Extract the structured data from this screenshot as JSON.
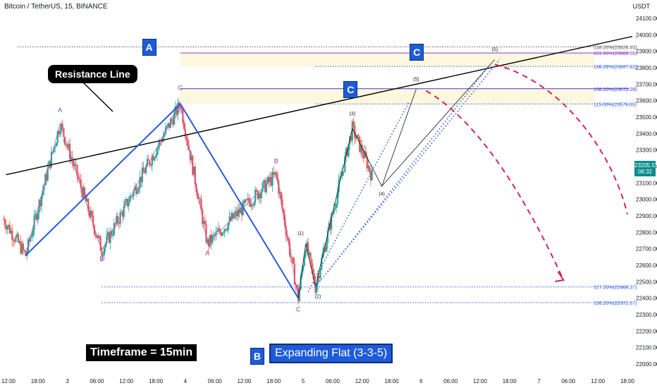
{
  "title": "Bitcoin / TetherUS, 15, BINANCE",
  "y_unit": "USDT",
  "callout": "Resistance Line",
  "banner_timeframe": "Timeframe = 15min",
  "banner_pattern": "Expanding Flat (3-3-5)",
  "current_price": "23205.51",
  "countdown": "08:32",
  "wave_boxes": [
    {
      "label": "A",
      "price": 23930,
      "time": 57
    },
    {
      "label": "B",
      "price": 22050,
      "time": 101
    },
    {
      "label": "C",
      "price": 23670,
      "time": 139
    },
    {
      "label": "C",
      "price": 23900,
      "time": 166
    }
  ],
  "chart_data": {
    "type": "line",
    "x_ticks": [
      {
        "t": 0,
        "label": "12:00"
      },
      {
        "t": 12,
        "label": "18:00"
      },
      {
        "t": 24,
        "label": "3"
      },
      {
        "t": 36,
        "label": "06:00"
      },
      {
        "t": 48,
        "label": "12:00"
      },
      {
        "t": 60,
        "label": "18:00"
      },
      {
        "t": 72,
        "label": "4"
      },
      {
        "t": 84,
        "label": "06:00"
      },
      {
        "t": 96,
        "label": "12:00"
      },
      {
        "t": 108,
        "label": "18:00"
      },
      {
        "t": 120,
        "label": "5"
      },
      {
        "t": 132,
        "label": "06:00"
      },
      {
        "t": 144,
        "label": "12:00"
      },
      {
        "t": 156,
        "label": "18:00"
      },
      {
        "t": 168,
        "label": "6"
      },
      {
        "t": 180,
        "label": "06:00"
      },
      {
        "t": 192,
        "label": "12:00"
      },
      {
        "t": 204,
        "label": "18:00"
      },
      {
        "t": 216,
        "label": "7"
      },
      {
        "t": 228,
        "label": "06:00"
      },
      {
        "t": 240,
        "label": "12:00"
      },
      {
        "t": 252,
        "label": "18:00"
      }
    ],
    "ylim": [
      21950,
      24200
    ],
    "y_ticks": [
      22000,
      22100,
      22200,
      22300,
      22400,
      22500,
      22600,
      22700,
      22800,
      22900,
      23000,
      23100,
      23200,
      23300,
      23400,
      23500,
      23600,
      23700,
      23800,
      23900,
      24000,
      24100
    ],
    "fib_levels": [
      {
        "label": "138.20%(23926.65)",
        "price": 23926.65,
        "color": "#555555",
        "style": "dotted"
      },
      {
        "label": "161.80%(23889.56)",
        "price": 23889.56,
        "color": "#8b3dbf",
        "style": "solid"
      },
      {
        "label": "138.20%(23807.83)",
        "price": 23807.83,
        "color": "#2b5bd8",
        "style": "dotted"
      },
      {
        "label": "138.20%(23672.28)",
        "price": 23672.28,
        "color": "#3a3ad0",
        "style": "solid"
      },
      {
        "label": "115.00%(23579.89)",
        "price": 23579.89,
        "color": "#2b5bd8",
        "style": "dotted"
      },
      {
        "label": "127.20%(22468.37)",
        "price": 22468.37,
        "color": "#2b5bd8",
        "style": "dotted"
      },
      {
        "label": "138.20%(22372.67)",
        "price": 22372.67,
        "color": "#2b5bd8",
        "style": "dotted"
      }
    ],
    "resistance_line": [
      [
        -1,
        23150
      ],
      [
        254,
        23990
      ]
    ],
    "main_wave": [
      [
        7,
        22660
      ],
      [
        70,
        23580
      ],
      [
        118,
        22400
      ],
      [
        168,
        23850
      ]
    ],
    "minor_wave_1": [
      [
        7,
        22660
      ],
      [
        21,
        23460
      ],
      [
        38,
        22690
      ],
      [
        70,
        23580
      ]
    ],
    "minor_wave_2": [
      [
        70,
        23580
      ],
      [
        81,
        22730
      ],
      [
        109,
        23150
      ],
      [
        118,
        22400
      ]
    ],
    "wave_c1": [
      [
        118,
        22400
      ],
      [
        121,
        22730
      ],
      [
        125,
        22470
      ],
      [
        140,
        23430
      ],
      [
        152,
        23080
      ],
      [
        166,
        23670
      ]
    ],
    "wave_c2": [
      [
        152,
        23080
      ],
      [
        198,
        23850
      ]
    ],
    "dotted_channels": [
      [
        [
          122,
          22440
        ],
        [
          163,
          23590
        ]
      ],
      [
        [
          125,
          22470
        ],
        [
          200,
          23850
        ]
      ],
      [
        [
          130,
          22560
        ],
        [
          196,
          23820
        ]
      ]
    ],
    "wave_labels": [
      {
        "label": "A",
        "t": 21,
        "price": 23530,
        "color": "#8b3dbf"
      },
      {
        "label": "B",
        "t": 38,
        "price": 22625,
        "color": "#8b3dbf"
      },
      {
        "label": "C",
        "t": 70,
        "price": 23665,
        "color": "#8b3dbf"
      },
      {
        "label": "A",
        "t": 81,
        "price": 22660,
        "color": "#8b3dbf"
      },
      {
        "label": "B",
        "t": 109,
        "price": 23220,
        "color": "#8b3dbf"
      },
      {
        "label": "C",
        "t": 118,
        "price": 22320,
        "color": "#8b3dbf"
      },
      {
        "label": "(1)",
        "t": 119,
        "price": 22785,
        "color": "#131722"
      },
      {
        "label": "(2)",
        "t": 126,
        "price": 22400,
        "color": "#131722"
      },
      {
        "label": "(3)",
        "t": 140,
        "price": 23510,
        "color": "#131722"
      },
      {
        "label": "(4)",
        "t": 152,
        "price": 23025,
        "color": "#131722"
      },
      {
        "label": "(5)",
        "t": 166,
        "price": 23720,
        "color": "#131722"
      },
      {
        "label": "(5)",
        "t": 198,
        "price": 23900,
        "color": "#131722"
      }
    ],
    "projection_1": [
      [
        170,
        23660
      ],
      [
        198,
        23420
      ],
      [
        226,
        22510
      ]
    ],
    "projection_2": [
      [
        198,
        23820
      ],
      [
        226,
        23710
      ],
      [
        246,
        23280
      ],
      [
        252,
        22910
      ]
    ]
  }
}
